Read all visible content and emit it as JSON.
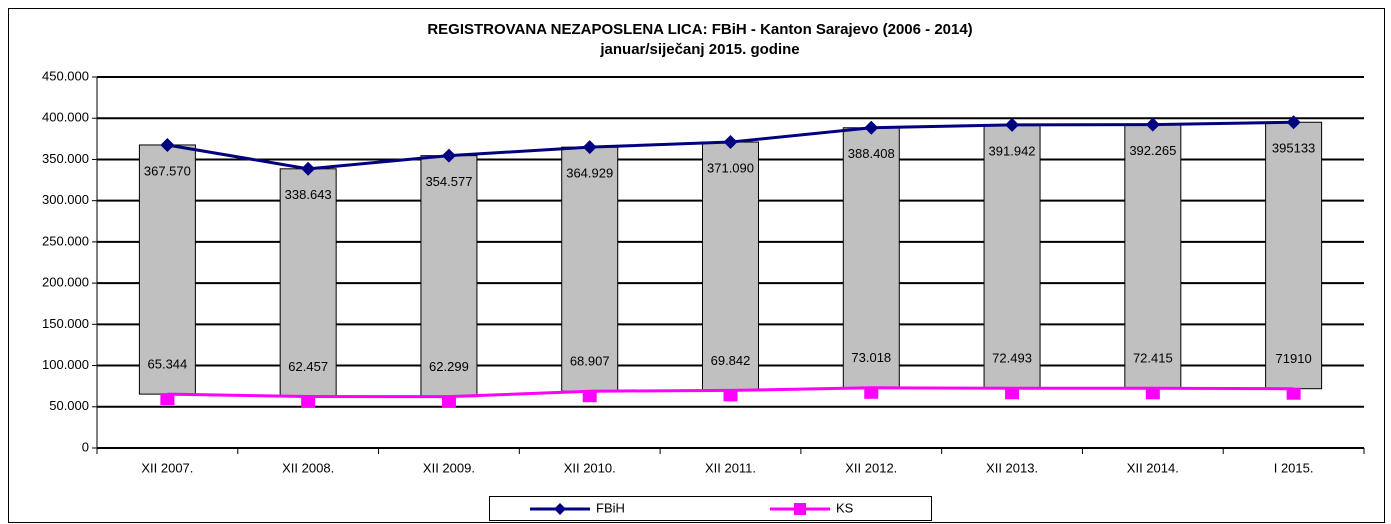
{
  "chart_data": {
    "type": "line",
    "title": "REGISTROVANA NEZAPOSLENA LICA: FBiH - Kanton Sarajevo (2006 - 2014)",
    "subtitle": "januar/siječanj 2015. godine",
    "categories": [
      "XII 2007.",
      "XII 2008.",
      "XII 2009.",
      "XII 2010.",
      "XII 2011.",
      "XII  2012.",
      "XII 2013.",
      "XII 2014.",
      "I 2015."
    ],
    "series": [
      {
        "name": "FBiH",
        "color": "#000080",
        "values": [
          367570,
          338643,
          354577,
          364929,
          371090,
          388408,
          391942,
          392265,
          395133
        ],
        "value_labels": [
          "367.570",
          "338.643",
          "354.577",
          "364.929",
          "371.090",
          "388.408",
          "391.942",
          "392.265",
          "395133"
        ]
      },
      {
        "name": "KS",
        "color": "#ff00ff",
        "values": [
          65344,
          62457,
          62299,
          68907,
          69842,
          73018,
          72493,
          72415,
          71910
        ],
        "value_labels": [
          "65.344",
          "62.457",
          "62.299",
          "68.907",
          "69.842",
          "73.018",
          "72.493",
          "72.415",
          "71910"
        ]
      }
    ],
    "high_low_color": "#c0c0c0",
    "ylim": [
      0,
      450000
    ],
    "yticks": [
      0,
      {
        "value": 50000,
        "label": "50.000"
      },
      {
        "value": 100000,
        "label": "100.000"
      },
      {
        "value": 150000,
        "label": "150.000"
      },
      {
        "value": 200000,
        "label": "200.000"
      },
      {
        "value": 250000,
        "label": "250.000"
      },
      {
        "value": 300000,
        "label": "300.000"
      },
      {
        "value": 350000,
        "label": "350.000"
      },
      {
        "value": 400000,
        "label": "400.000"
      },
      {
        "value": 450000,
        "label": "450.000"
      }
    ],
    "grid": true,
    "legend": "bottom"
  }
}
